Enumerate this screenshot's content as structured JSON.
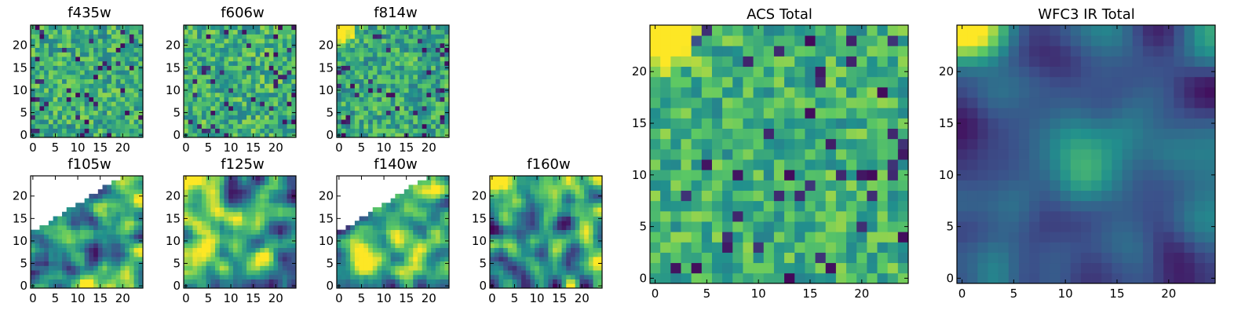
{
  "figure": {
    "colormap": "viridis",
    "colormap_stops": [
      "#440154",
      "#3b528b",
      "#21908d",
      "#5dc963",
      "#fde725"
    ],
    "panels_shown": [
      "f435w",
      "f606w",
      "f814w",
      "f105w",
      "f125w",
      "f140w",
      "f160w",
      "ACS Total",
      "WFC3 IR Total"
    ]
  },
  "chart_data": [
    {
      "type": "heatmap",
      "title": "f435w",
      "grid_size": 25,
      "xlim": [
        -0.5,
        24.5
      ],
      "ylim": [
        -0.5,
        24.5
      ],
      "xticks": [
        0,
        5,
        10,
        15,
        20
      ],
      "yticks": [
        0,
        5,
        10,
        15,
        20
      ],
      "pattern": "pixel noise, mostly green/yellow-green with scattered dark pixels",
      "masked_region": "none",
      "seed": 11,
      "mean_level": 0.62,
      "noise": 0.22,
      "smooth": 0
    },
    {
      "type": "heatmap",
      "title": "f606w",
      "grid_size": 25,
      "xlim": [
        -0.5,
        24.5
      ],
      "ylim": [
        -0.5,
        24.5
      ],
      "xticks": [
        0,
        5,
        10,
        15,
        20
      ],
      "yticks": [
        0,
        5,
        10,
        15,
        20
      ],
      "pattern": "pixel noise, green/yellow with scattered dark pixels",
      "masked_region": "none",
      "seed": 23,
      "mean_level": 0.64,
      "noise": 0.22,
      "smooth": 0
    },
    {
      "type": "heatmap",
      "title": "f814w",
      "grid_size": 25,
      "xlim": [
        -0.5,
        24.5
      ],
      "ylim": [
        -0.5,
        24.5
      ],
      "xticks": [
        0,
        5,
        10,
        15,
        20
      ],
      "yticks": [
        0,
        5,
        10,
        15,
        20
      ],
      "pattern": "pixel noise, bright yellow corner at top-left",
      "masked_region": "none",
      "seed": 37,
      "mean_level": 0.6,
      "noise": 0.22,
      "smooth": 0,
      "bright_corner": "top-left"
    },
    {
      "type": "heatmap",
      "title": "f105w",
      "grid_size": 25,
      "xlim": [
        -0.5,
        24.5
      ],
      "ylim": [
        -0.5,
        24.5
      ],
      "xticks": [
        0,
        5,
        10,
        15,
        20
      ],
      "yticks": [
        0,
        5,
        10,
        15,
        20
      ],
      "pattern": "smooth blobs, green/yellow",
      "masked_region": "upper-left triangle",
      "seed": 41,
      "mean_level": 0.62,
      "noise": 0.25,
      "smooth": 1
    },
    {
      "type": "heatmap",
      "title": "f125w",
      "grid_size": 25,
      "xlim": [
        -0.5,
        24.5
      ],
      "ylim": [
        -0.5,
        24.5
      ],
      "xticks": [
        0,
        5,
        10,
        15,
        20
      ],
      "yticks": [
        0,
        5,
        10,
        15,
        20
      ],
      "pattern": "smooth blobs, yellow corner top-left",
      "masked_region": "none",
      "seed": 53,
      "mean_level": 0.6,
      "noise": 0.25,
      "smooth": 1,
      "bright_corner": "top-left"
    },
    {
      "type": "heatmap",
      "title": "f140w",
      "grid_size": 25,
      "xlim": [
        -0.5,
        24.5
      ],
      "ylim": [
        -0.5,
        24.5
      ],
      "xticks": [
        0,
        5,
        10,
        15,
        20
      ],
      "yticks": [
        0,
        5,
        10,
        15,
        20
      ],
      "pattern": "smooth blobs, green/yellow",
      "masked_region": "upper-left triangle",
      "seed": 67,
      "mean_level": 0.6,
      "noise": 0.25,
      "smooth": 1
    },
    {
      "type": "heatmap",
      "title": "f160w",
      "grid_size": 25,
      "xlim": [
        -0.5,
        24.5
      ],
      "ylim": [
        -0.5,
        24.5
      ],
      "xticks": [
        0,
        5,
        10,
        15,
        20
      ],
      "yticks": [
        0,
        5,
        10,
        15,
        20
      ],
      "pattern": "smooth blobs, green with dark patches",
      "masked_region": "none",
      "seed": 79,
      "mean_level": 0.52,
      "noise": 0.25,
      "smooth": 1,
      "bright_corner": "top-left"
    },
    {
      "type": "heatmap",
      "title": "ACS Total",
      "grid_size": 25,
      "xlim": [
        -0.5,
        24.5
      ],
      "ylim": [
        -0.5,
        24.5
      ],
      "xticks": [
        0,
        5,
        10,
        15,
        20
      ],
      "yticks": [
        0,
        5,
        10,
        15,
        20
      ],
      "pattern": "pixel noise, mostly yellow-green",
      "masked_region": "none",
      "seed": 97,
      "mean_level": 0.64,
      "noise": 0.2,
      "smooth": 0,
      "bright_corner": "top-left"
    },
    {
      "type": "heatmap",
      "title": "WFC3 IR Total",
      "grid_size": 25,
      "xlim": [
        -0.5,
        24.5
      ],
      "ylim": [
        -0.5,
        24.5
      ],
      "xticks": [
        0,
        5,
        10,
        15,
        20
      ],
      "yticks": [
        0,
        5,
        10,
        15,
        20
      ],
      "pattern": "very smooth blue-teal field with central green source and bright yellow top-left corner",
      "masked_region": "none",
      "seed": 113,
      "mean_level": 0.32,
      "noise": 0.12,
      "smooth": 2,
      "bright_corner": "top-left",
      "central_source": [
        12,
        11
      ]
    }
  ]
}
